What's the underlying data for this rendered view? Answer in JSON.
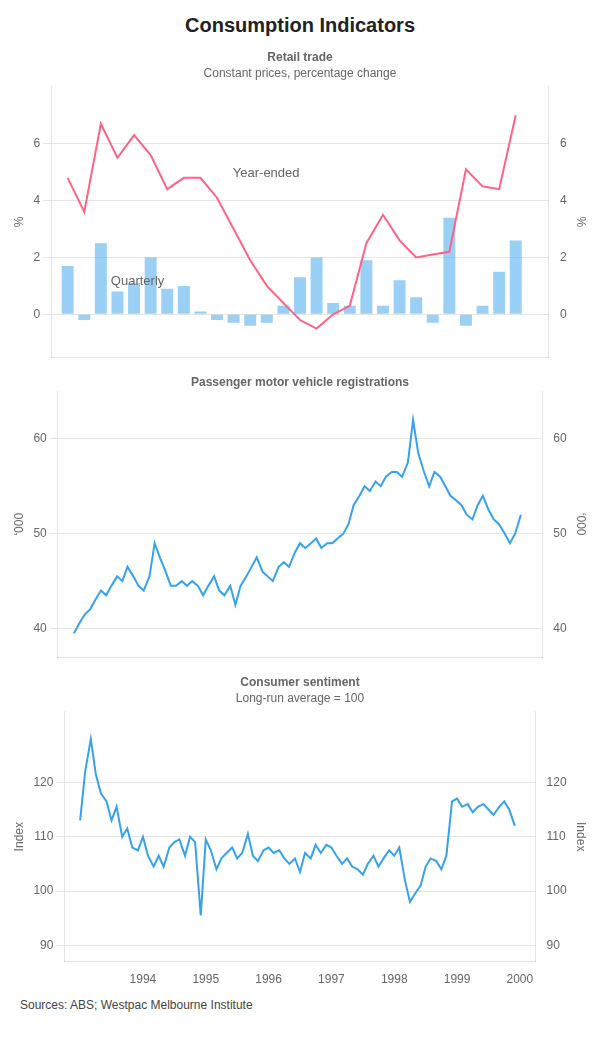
{
  "title": "Consumption Indicators",
  "sources": "Sources:  ABS; Westpac Melbourne Institute",
  "chart_data": [
    {
      "type": "bar",
      "title": "Retail trade",
      "subtitle": "Constant prices, percentage change",
      "ylabel": "%",
      "y2label": "%",
      "xlim": [
        1992.75,
        2000.25
      ],
      "xticks": [],
      "ylim": [
        -1.5,
        8.0
      ],
      "yticks": [
        0,
        2,
        4,
        6
      ],
      "y2lim": [
        -1.5,
        8.0
      ],
      "y2ticks": [
        0,
        2,
        4,
        6
      ],
      "grid": true,
      "tick_labels": "y",
      "series": [
        {
          "name": "Quarterly",
          "type": "bar",
          "x": [
            1993.0,
            1993.25,
            1993.5,
            1993.75,
            1994.0,
            1994.25,
            1994.5,
            1994.75,
            1995.0,
            1995.25,
            1995.5,
            1995.75,
            1996.0,
            1996.25,
            1996.5,
            1996.75,
            1997.0,
            1997.25,
            1997.5,
            1997.75,
            1998.0,
            1998.25,
            1998.5,
            1998.75,
            1999.0,
            1999.25,
            1999.5,
            1999.75
          ],
          "values": [
            1.7,
            -0.2,
            2.5,
            0.8,
            1.1,
            2.0,
            0.9,
            1.0,
            0.1,
            -0.2,
            -0.3,
            -0.4,
            -0.3,
            0.3,
            1.3,
            2.0,
            0.4,
            0.3,
            1.9,
            0.3,
            1.2,
            0.6,
            -0.3,
            3.4,
            -0.4,
            0.3,
            1.5,
            2.6
          ]
        },
        {
          "name": "Year-ended",
          "type": "line",
          "x": [
            1993.0,
            1993.25,
            1993.5,
            1993.75,
            1994.0,
            1994.25,
            1994.5,
            1994.75,
            1995.0,
            1995.25,
            1995.5,
            1995.75,
            1996.0,
            1996.25,
            1996.5,
            1996.75,
            1997.0,
            1997.25,
            1997.5,
            1997.75,
            1998.0,
            1998.25,
            1998.5,
            1998.75,
            1999.0,
            1999.25,
            1999.5,
            1999.75
          ],
          "values": [
            4.8,
            3.6,
            6.7,
            5.5,
            6.3,
            5.6,
            4.4,
            4.8,
            4.8,
            4.1,
            3.0,
            1.9,
            1.0,
            0.4,
            -0.2,
            -0.5,
            0.0,
            0.3,
            2.5,
            3.5,
            2.6,
            2.0,
            2.1,
            2.2,
            5.1,
            4.5,
            4.4,
            7.0
          ]
        }
      ]
    },
    {
      "type": "line",
      "title": "Passenger motor vehicle registrations",
      "ylabel": "‘000",
      "y2label": "‘000",
      "xlim": [
        1992.75,
        2000.25
      ],
      "xticks": [],
      "ylim": [
        37,
        65
      ],
      "yticks": [
        40,
        50,
        60
      ],
      "y2lim": [
        37,
        65
      ],
      "y2ticks": [
        40,
        50,
        60
      ],
      "grid": true,
      "tick_labels": "y",
      "series": [
        {
          "x": [
            1993.0,
            1993.08,
            1993.17,
            1993.25,
            1993.33,
            1993.42,
            1993.5,
            1993.58,
            1993.67,
            1993.75,
            1993.83,
            1993.92,
            1994.0,
            1994.08,
            1994.17,
            1994.25,
            1994.33,
            1994.42,
            1994.5,
            1994.58,
            1994.67,
            1994.75,
            1994.83,
            1994.92,
            1995.0,
            1995.08,
            1995.17,
            1995.25,
            1995.33,
            1995.42,
            1995.5,
            1995.58,
            1995.67,
            1995.75,
            1995.83,
            1995.92,
            1996.0,
            1996.08,
            1996.17,
            1996.25,
            1996.33,
            1996.42,
            1996.5,
            1996.58,
            1996.67,
            1996.75,
            1996.83,
            1996.92,
            1997.0,
            1997.08,
            1997.17,
            1997.25,
            1997.33,
            1997.42,
            1997.5,
            1997.58,
            1997.67,
            1997.75,
            1997.83,
            1997.92,
            1998.0,
            1998.08,
            1998.17,
            1998.25,
            1998.33,
            1998.42,
            1998.5,
            1998.58,
            1998.67,
            1998.75,
            1998.83,
            1998.92,
            1999.0,
            1999.08,
            1999.17,
            1999.25,
            1999.33,
            1999.42,
            1999.5,
            1999.58,
            1999.67,
            1999.75,
            1999.83,
            1999.92
          ],
          "values": [
            39.5,
            40.5,
            41.5,
            42.0,
            43.0,
            44.0,
            43.5,
            44.5,
            45.5,
            45.0,
            46.5,
            45.5,
            44.5,
            44.0,
            45.5,
            49.0,
            47.5,
            46.0,
            44.5,
            44.5,
            45.0,
            44.5,
            45.0,
            44.5,
            43.5,
            44.5,
            45.5,
            44.0,
            43.5,
            44.5,
            42.5,
            44.5,
            45.5,
            46.5,
            47.5,
            46.0,
            45.5,
            45.0,
            46.5,
            47.0,
            46.5,
            48.0,
            49.0,
            48.5,
            49.0,
            49.5,
            48.5,
            49.0,
            49.0,
            49.5,
            50.0,
            51.0,
            53.0,
            54.0,
            55.0,
            54.5,
            55.5,
            55.0,
            56.0,
            56.5,
            56.5,
            56.0,
            57.5,
            62.0,
            58.5,
            56.5,
            55.0,
            56.5,
            56.0,
            55.0,
            54.0,
            53.5,
            53.0,
            52.0,
            51.5,
            53.0,
            54.0,
            52.5,
            51.5,
            51.0,
            50.0,
            49.0,
            50.0,
            52.0
          ]
        }
      ]
    },
    {
      "type": "line",
      "title": "Consumer sentiment",
      "subtitle": "Long-run average = 100",
      "ylabel": "Index",
      "y2label": "Index",
      "xlim": [
        1992.75,
        2000.25
      ],
      "xticks": [
        1994,
        1995,
        1996,
        1997,
        1998,
        1999,
        2000
      ],
      "ylim": [
        87,
        133
      ],
      "yticks": [
        90,
        100,
        110,
        120
      ],
      "y2lim": [
        87,
        133
      ],
      "y2ticks": [
        90,
        100,
        110,
        120
      ],
      "grid": true,
      "series": [
        {
          "x": [
            1993.0,
            1993.08,
            1993.17,
            1993.25,
            1993.33,
            1993.42,
            1993.5,
            1993.58,
            1993.67,
            1993.75,
            1993.83,
            1993.92,
            1994.0,
            1994.08,
            1994.17,
            1994.25,
            1994.33,
            1994.42,
            1994.5,
            1994.58,
            1994.67,
            1994.75,
            1994.83,
            1994.92,
            1995.0,
            1995.08,
            1995.17,
            1995.25,
            1995.33,
            1995.42,
            1995.5,
            1995.58,
            1995.67,
            1995.75,
            1995.83,
            1995.92,
            1996.0,
            1996.08,
            1996.17,
            1996.25,
            1996.33,
            1996.42,
            1996.5,
            1996.58,
            1996.67,
            1996.75,
            1996.83,
            1996.92,
            1997.0,
            1997.08,
            1997.17,
            1997.25,
            1997.33,
            1997.42,
            1997.5,
            1997.58,
            1997.67,
            1997.75,
            1997.83,
            1997.92,
            1998.0,
            1998.08,
            1998.17,
            1998.25,
            1998.33,
            1998.42,
            1998.5,
            1998.58,
            1998.67,
            1998.75,
            1998.83,
            1998.92,
            1999.0,
            1999.08,
            1999.17,
            1999.25,
            1999.33,
            1999.42,
            1999.5,
            1999.58,
            1999.67,
            1999.75,
            1999.83,
            1999.92
          ],
          "values": [
            113.0,
            122.0,
            128.0,
            121.5,
            118.0,
            116.5,
            113.0,
            115.5,
            110.0,
            111.5,
            108.0,
            107.5,
            110.0,
            106.5,
            104.5,
            106.5,
            104.5,
            108.0,
            109.0,
            109.5,
            106.5,
            110.0,
            109.0,
            95.5,
            109.5,
            107.5,
            104.0,
            106.0,
            107.0,
            108.0,
            106.0,
            107.0,
            110.5,
            106.5,
            105.5,
            107.5,
            108.0,
            107.0,
            107.5,
            106.0,
            105.0,
            106.0,
            103.5,
            107.0,
            106.0,
            108.5,
            107.0,
            108.5,
            108.0,
            106.5,
            105.0,
            106.0,
            104.5,
            104.0,
            103.0,
            105.0,
            106.5,
            104.5,
            106.0,
            107.5,
            106.5,
            108.0,
            102.0,
            98.0,
            99.5,
            101.0,
            104.5,
            106.0,
            105.5,
            104.0,
            106.5,
            116.5,
            117.0,
            115.5,
            116.0,
            114.5,
            115.5,
            116.0,
            115.0,
            114.0,
            115.5,
            116.5,
            115.0,
            112.0
          ]
        }
      ]
    }
  ]
}
